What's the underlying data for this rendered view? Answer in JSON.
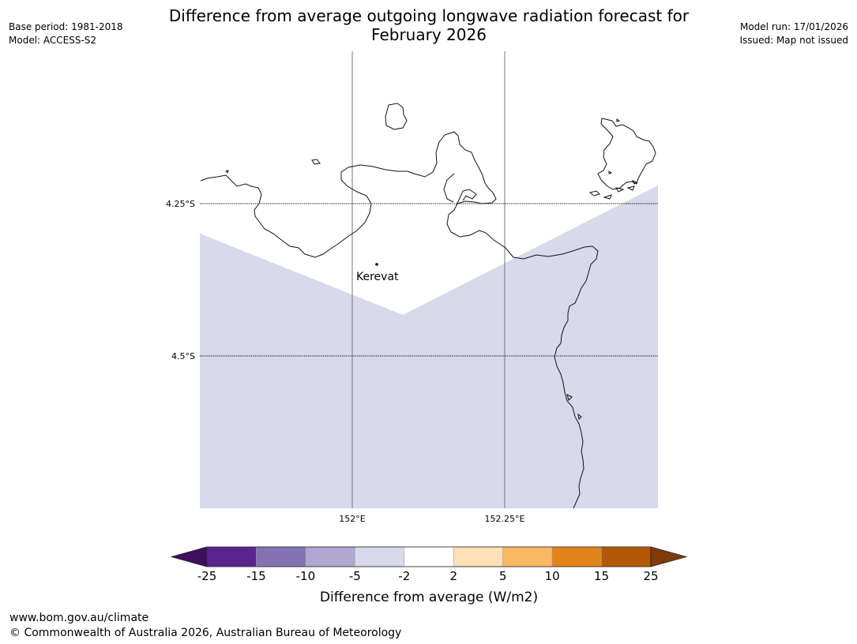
{
  "title_line1": "Difference from average outgoing longwave radiation forecast for",
  "title_line2": "February 2026",
  "meta_left": [
    "Base period: 1981-2018",
    "Model: ACCESS-S2"
  ],
  "meta_right": [
    "Model run: 17/01/2026",
    "Issued: Map not issued"
  ],
  "map": {
    "lat_labels": [
      "4.25°S",
      "4.5°S"
    ],
    "lon_labels": [
      "152°E",
      "152.25°E"
    ],
    "place_label": "Kerevat",
    "anomaly_fill_color": "#d8d9ea"
  },
  "legend": {
    "title": "Difference from average (W/m2)",
    "ticks": [
      "-25",
      "-15",
      "-10",
      "-5",
      "-2",
      "2",
      "5",
      "10",
      "15",
      "25"
    ],
    "colors": [
      "#3f0e5e",
      "#5a2490",
      "#8272b2",
      "#b0a8d2",
      "#d8d9ea",
      "#ffffff",
      "#fde0b6",
      "#fbb863",
      "#e2841a",
      "#b35807",
      "#7f3b08"
    ]
  },
  "footer": {
    "url": "www.bom.gov.au/climate",
    "copyright": "© Commonwealth of Australia 2026, Australian Bureau of Meteorology"
  }
}
